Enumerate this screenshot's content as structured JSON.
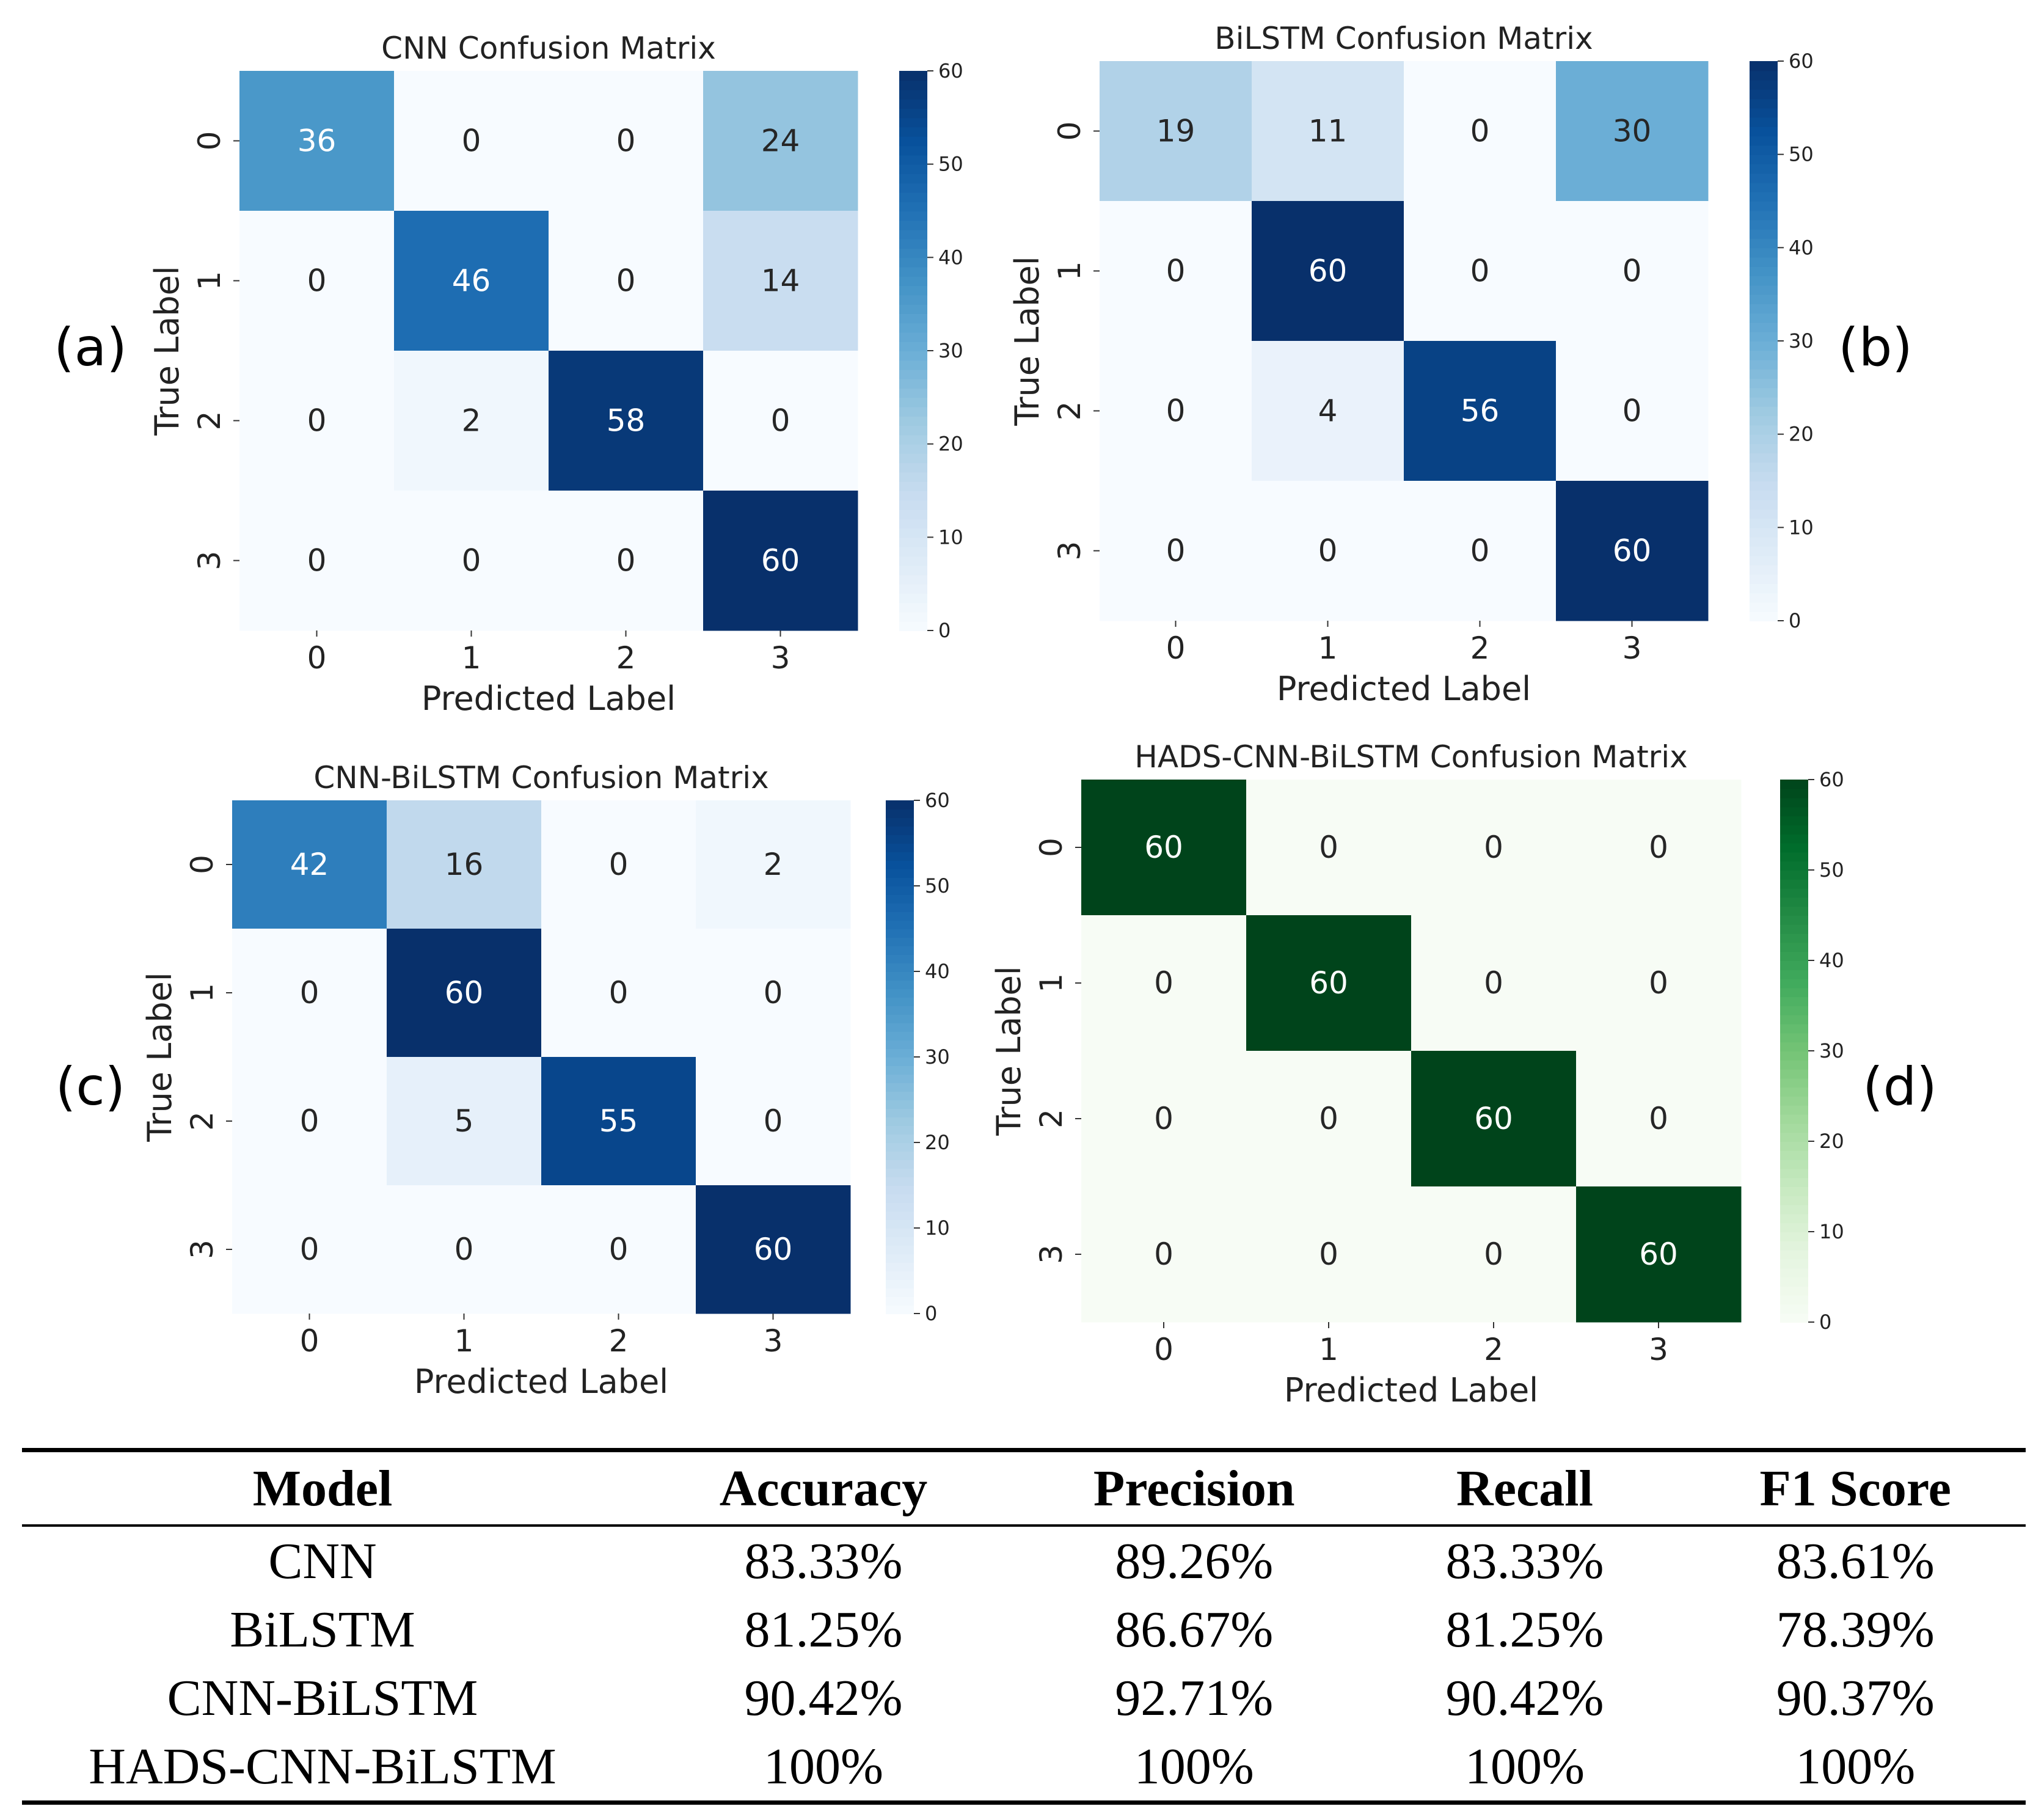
{
  "chart_data": [
    {
      "type": "heatmap",
      "panel": "(a)",
      "title": "CNN Confusion Matrix",
      "xlabel": "Predicted Label",
      "ylabel": "True Label",
      "x_ticks": [
        "0",
        "1",
        "2",
        "3"
      ],
      "y_ticks": [
        "0",
        "1",
        "2",
        "3"
      ],
      "matrix": [
        [
          36,
          0,
          0,
          24
        ],
        [
          0,
          46,
          0,
          14
        ],
        [
          0,
          2,
          58,
          0
        ],
        [
          0,
          0,
          0,
          60
        ]
      ],
      "colormap": "Blues",
      "vmin": 0,
      "vmax": 60,
      "colorbar_ticks": [
        "0",
        "10",
        "20",
        "30",
        "40",
        "50",
        "60"
      ]
    },
    {
      "type": "heatmap",
      "panel": "(b)",
      "title": "BiLSTM Confusion Matrix",
      "xlabel": "Predicted Label",
      "ylabel": "True Label",
      "x_ticks": [
        "0",
        "1",
        "2",
        "3"
      ],
      "y_ticks": [
        "0",
        "1",
        "2",
        "3"
      ],
      "matrix": [
        [
          19,
          11,
          0,
          30
        ],
        [
          0,
          60,
          0,
          0
        ],
        [
          0,
          4,
          56,
          0
        ],
        [
          0,
          0,
          0,
          60
        ]
      ],
      "colormap": "Blues",
      "vmin": 0,
      "vmax": 60,
      "colorbar_ticks": [
        "0",
        "10",
        "20",
        "30",
        "40",
        "50",
        "60"
      ]
    },
    {
      "type": "heatmap",
      "panel": "(c)",
      "title": "CNN-BiLSTM Confusion Matrix",
      "xlabel": "Predicted Label",
      "ylabel": "True Label",
      "x_ticks": [
        "0",
        "1",
        "2",
        "3"
      ],
      "y_ticks": [
        "0",
        "1",
        "2",
        "3"
      ],
      "matrix": [
        [
          42,
          16,
          0,
          2
        ],
        [
          0,
          60,
          0,
          0
        ],
        [
          0,
          5,
          55,
          0
        ],
        [
          0,
          0,
          0,
          60
        ]
      ],
      "colormap": "Blues",
      "vmin": 0,
      "vmax": 60,
      "colorbar_ticks": [
        "0",
        "10",
        "20",
        "30",
        "40",
        "50",
        "60"
      ]
    },
    {
      "type": "heatmap",
      "panel": "(d)",
      "title": "HADS-CNN-BiLSTM Confusion Matrix",
      "xlabel": "Predicted Label",
      "ylabel": "True Label",
      "x_ticks": [
        "0",
        "1",
        "2",
        "3"
      ],
      "y_ticks": [
        "0",
        "1",
        "2",
        "3"
      ],
      "matrix": [
        [
          60,
          0,
          0,
          0
        ],
        [
          0,
          60,
          0,
          0
        ],
        [
          0,
          0,
          60,
          0
        ],
        [
          0,
          0,
          0,
          60
        ]
      ],
      "colormap": "Greens",
      "vmin": 0,
      "vmax": 60,
      "colorbar_ticks": [
        "0",
        "10",
        "20",
        "30",
        "40",
        "50",
        "60"
      ]
    }
  ],
  "table": {
    "headers": [
      "Model",
      "Accuracy",
      "Precision",
      "Recall",
      "F1 Score"
    ],
    "rows": [
      [
        "CNN",
        "83.33%",
        "89.26%",
        "83.33%",
        "83.61%"
      ],
      [
        "BiLSTM",
        "81.25%",
        "86.67%",
        "81.25%",
        "78.39%"
      ],
      [
        "CNN-BiLSTM",
        "90.42%",
        "92.71%",
        "90.42%",
        "90.37%"
      ],
      [
        "HADS-CNN-BiLSTM",
        "100%",
        "100%",
        "100%",
        "100%"
      ]
    ]
  }
}
